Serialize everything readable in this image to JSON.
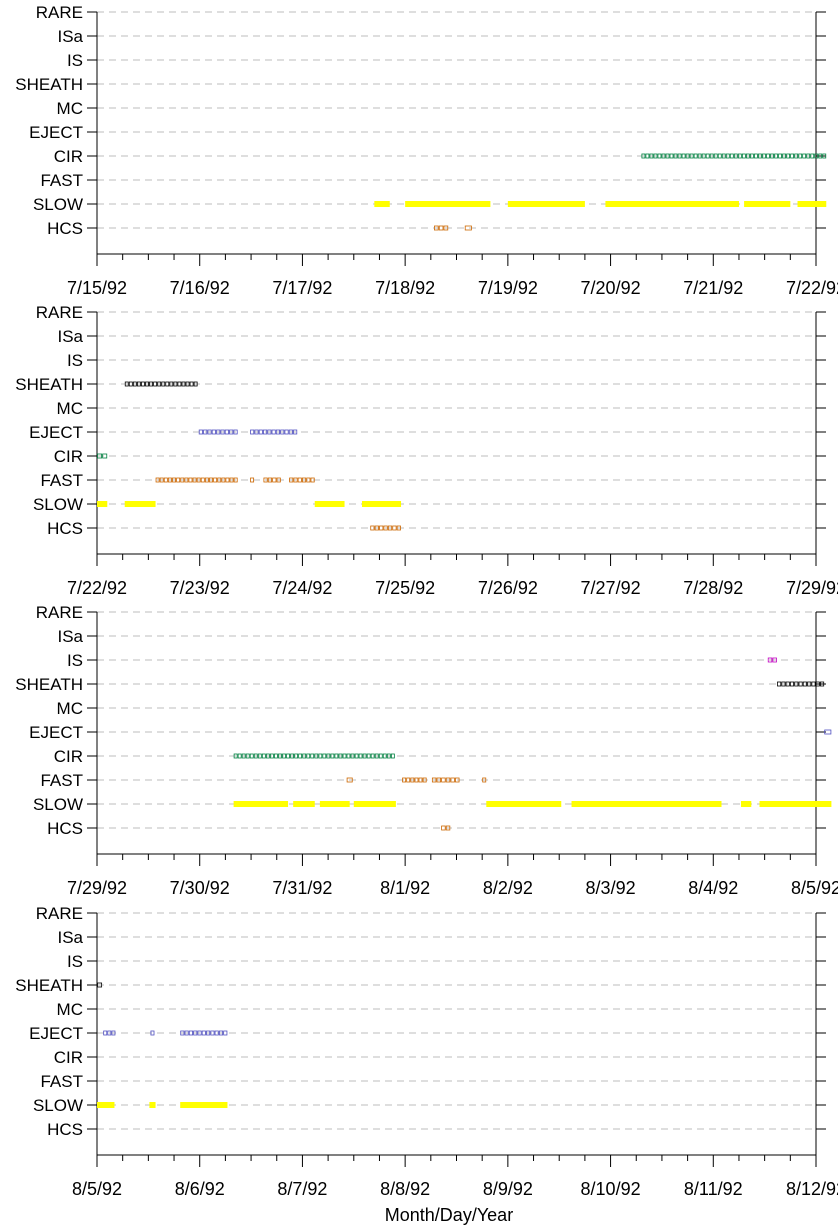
{
  "chart_data": {
    "type": "scatter",
    "xlabel": "Month/Day/Year",
    "categories": [
      "RARE",
      "ISa",
      "IS",
      "SHEATH",
      "MC",
      "EJECT",
      "CIR",
      "FAST",
      "SLOW",
      "HCS"
    ],
    "category_colors": {
      "SLOW": "#ffff00",
      "HCS": "#cc6600",
      "CIR": "#008040",
      "FAST": "#cc6600",
      "SHEATH": "#000000",
      "EJECT": "#5050c0",
      "IS": "#c000c0"
    },
    "grid": "dashed horizontal",
    "panels": [
      {
        "xlim": [
          "1992-07-15",
          "1992-07-22"
        ],
        "tick_labels": [
          "7/15/92",
          "7/16/92",
          "7/17/92",
          "7/18/92",
          "7/19/92",
          "7/20/92",
          "7/21/92",
          "7/22/92"
        ],
        "intervals": [
          {
            "category": "CIR",
            "start": 5.3,
            "end": 7.1
          },
          {
            "category": "SLOW",
            "start": 2.7,
            "end": 2.85
          },
          {
            "category": "SLOW",
            "start": 3.0,
            "end": 3.83
          },
          {
            "category": "SLOW",
            "start": 4.0,
            "end": 4.75
          },
          {
            "category": "SLOW",
            "start": 4.95,
            "end": 6.25
          },
          {
            "category": "SLOW",
            "start": 6.3,
            "end": 6.75
          },
          {
            "category": "SLOW",
            "start": 6.82,
            "end": 7.1
          },
          {
            "category": "HCS",
            "start": 3.28,
            "end": 3.42
          },
          {
            "category": "HCS",
            "start": 3.58,
            "end": 3.65
          }
        ]
      },
      {
        "xlim": [
          "1992-07-22",
          "1992-07-29"
        ],
        "tick_labels": [
          "7/22/92",
          "7/23/92",
          "7/24/92",
          "7/25/92",
          "7/26/92",
          "7/27/92",
          "7/28/92",
          "7/29/92"
        ],
        "intervals": [
          {
            "category": "SHEATH",
            "start": 0.27,
            "end": 0.98
          },
          {
            "category": "EJECT",
            "start": 0.99,
            "end": 1.37
          },
          {
            "category": "EJECT",
            "start": 1.49,
            "end": 1.95
          },
          {
            "category": "CIR",
            "start": 0.0,
            "end": 0.1
          },
          {
            "category": "FAST",
            "start": 0.57,
            "end": 1.37
          },
          {
            "category": "FAST",
            "start": 1.49,
            "end": 1.53
          },
          {
            "category": "FAST",
            "start": 1.62,
            "end": 1.79
          },
          {
            "category": "FAST",
            "start": 1.87,
            "end": 2.12
          },
          {
            "category": "SLOW",
            "start": 0.0,
            "end": 0.1
          },
          {
            "category": "SLOW",
            "start": 0.27,
            "end": 0.57
          },
          {
            "category": "SLOW",
            "start": 2.12,
            "end": 2.41
          },
          {
            "category": "SLOW",
            "start": 2.58,
            "end": 2.96
          },
          {
            "category": "HCS",
            "start": 2.66,
            "end": 2.96
          }
        ]
      },
      {
        "xlim": [
          "1992-07-29",
          "1992-08-05"
        ],
        "tick_labels": [
          "7/29/92",
          "7/30/92",
          "7/31/92",
          "8/1/92",
          "8/2/92",
          "8/3/92",
          "8/4/92",
          "8/5/92"
        ],
        "intervals": [
          {
            "category": "IS",
            "start": 6.53,
            "end": 6.62
          },
          {
            "category": "SHEATH",
            "start": 6.62,
            "end": 7.08
          },
          {
            "category": "EJECT",
            "start": 7.08,
            "end": 7.15
          },
          {
            "category": "CIR",
            "start": 1.33,
            "end": 2.9
          },
          {
            "category": "FAST",
            "start": 2.43,
            "end": 2.49
          },
          {
            "category": "FAST",
            "start": 2.97,
            "end": 3.21
          },
          {
            "category": "FAST",
            "start": 3.26,
            "end": 3.53
          },
          {
            "category": "FAST",
            "start": 3.75,
            "end": 3.79
          },
          {
            "category": "SLOW",
            "start": 1.33,
            "end": 1.86
          },
          {
            "category": "SLOW",
            "start": 1.91,
            "end": 2.12
          },
          {
            "category": "SLOW",
            "start": 2.17,
            "end": 2.46
          },
          {
            "category": "SLOW",
            "start": 2.5,
            "end": 2.91
          },
          {
            "category": "SLOW",
            "start": 3.79,
            "end": 4.52
          },
          {
            "category": "SLOW",
            "start": 4.62,
            "end": 6.08
          },
          {
            "category": "SLOW",
            "start": 6.27,
            "end": 6.37
          },
          {
            "category": "SLOW",
            "start": 6.45,
            "end": 7.15
          },
          {
            "category": "HCS",
            "start": 3.35,
            "end": 3.44
          }
        ]
      },
      {
        "xlim": [
          "1992-08-05",
          "1992-08-12"
        ],
        "tick_labels": [
          "8/5/92",
          "8/6/92",
          "8/7/92",
          "8/8/92",
          "8/9/92",
          "8/10/92",
          "8/11/92",
          "8/12/92"
        ],
        "intervals": [
          {
            "category": "SHEATH",
            "start": 0.0,
            "end": 0.05
          },
          {
            "category": "EJECT",
            "start": 0.06,
            "end": 0.18
          },
          {
            "category": "EJECT",
            "start": 0.52,
            "end": 0.56
          },
          {
            "category": "EJECT",
            "start": 0.81,
            "end": 1.27
          },
          {
            "category": "SLOW",
            "start": 0.0,
            "end": 0.17
          },
          {
            "category": "SLOW",
            "start": 0.51,
            "end": 0.57
          },
          {
            "category": "SLOW",
            "start": 0.81,
            "end": 1.27
          }
        ]
      }
    ]
  }
}
